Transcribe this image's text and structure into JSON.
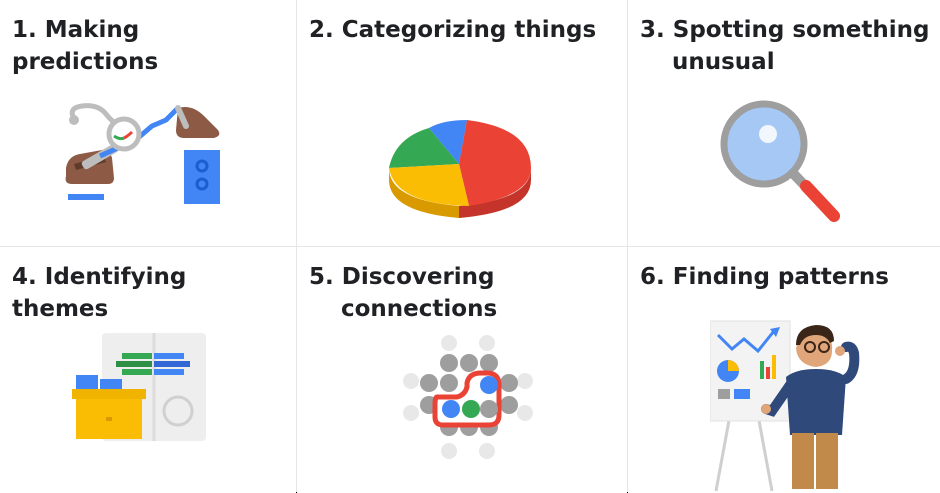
{
  "cells": [
    {
      "number": "1.",
      "title_line1": "Making predictions",
      "title_line2": "",
      "icon": "robot-arm-line-chart-icon"
    },
    {
      "number": "2.",
      "title_line1": "Categorizing things",
      "title_line2": "",
      "icon": "pie-chart-icon"
    },
    {
      "number": "3.",
      "title_line1": "Spotting something",
      "title_line2": "unusual",
      "icon": "magnifying-glass-icon"
    },
    {
      "number": "4.",
      "title_line1": "Identifying themes",
      "title_line2": "",
      "icon": "filing-box-icon"
    },
    {
      "number": "5.",
      "title_line1": "Discovering",
      "title_line2": "connections",
      "icon": "connected-dots-icon"
    },
    {
      "number": "6.",
      "title_line1": "Finding patterns",
      "title_line2": "",
      "icon": "presenter-chart-icon"
    }
  ],
  "colors": {
    "blue": "#4285F4",
    "red": "#EA4335",
    "yellow": "#FBBC04",
    "green": "#34A853",
    "brown": "#8D5A45",
    "grey": "#BDBDBD"
  }
}
